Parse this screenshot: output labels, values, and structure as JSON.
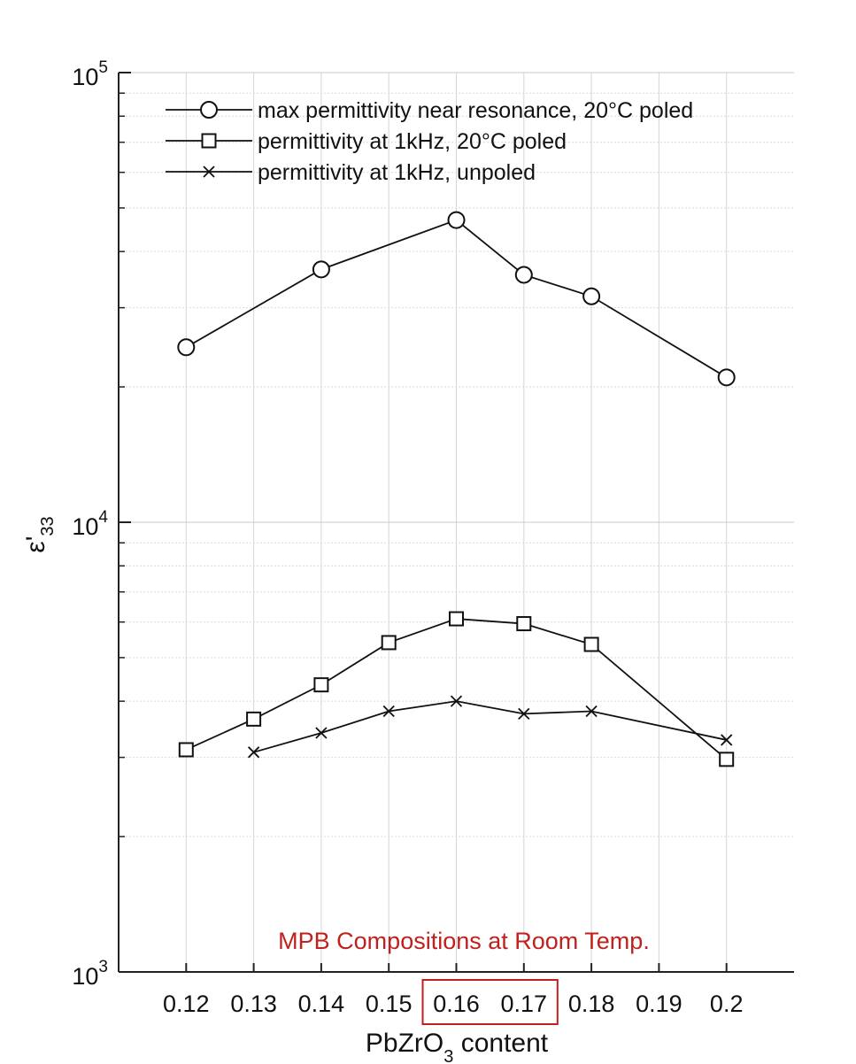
{
  "chart_data": {
    "type": "line",
    "title": "",
    "xlabel": "PbZrO3 content",
    "xlabel_parts": {
      "base": "PbZrO",
      "sub": "3",
      "rest": " content"
    },
    "ylabel": "ε'33",
    "ylabel_parts": {
      "base": "ε'",
      "sub": "33"
    },
    "yscale": "log",
    "ylim": [
      1000,
      100000
    ],
    "xlim": [
      0.11,
      0.21
    ],
    "x_ticks": [
      0.12,
      0.13,
      0.14,
      0.15,
      0.16,
      0.17,
      0.18,
      0.19,
      0.2
    ],
    "x_tick_labels": [
      "0.12",
      "0.13",
      "0.14",
      "0.15",
      "0.16",
      "0.17",
      "0.18",
      "0.19",
      "0.2"
    ],
    "y_ticks": [
      1000,
      10000,
      100000
    ],
    "y_tick_labels": [
      {
        "base": "10",
        "exp": "3"
      },
      {
        "base": "10",
        "exp": "4"
      },
      {
        "base": "10",
        "exp": "5"
      }
    ],
    "grid": true,
    "legend_position": "top-left",
    "series": [
      {
        "name": "max permittivity near resonance, 20°C poled",
        "marker": "circle",
        "x": [
          0.12,
          0.14,
          0.16,
          0.17,
          0.18,
          0.2
        ],
        "values": [
          24500,
          36500,
          47000,
          35500,
          31800,
          21000
        ]
      },
      {
        "name": "permittivity at 1kHz, 20°C poled",
        "marker": "square",
        "x": [
          0.12,
          0.13,
          0.14,
          0.15,
          0.16,
          0.17,
          0.18,
          0.2
        ],
        "values": [
          3120,
          3650,
          4350,
          5400,
          6100,
          5950,
          5350,
          2970
        ]
      },
      {
        "name": "permittivity at 1kHz, unpoled",
        "marker": "x",
        "x": [
          0.13,
          0.14,
          0.15,
          0.16,
          0.17,
          0.18,
          0.2
        ],
        "values": [
          3080,
          3400,
          3800,
          4000,
          3750,
          3800,
          3280
        ]
      }
    ],
    "annotations": {
      "text": "MPB Compositions at Room Temp.",
      "color": "#c0201e",
      "highlighted_ticks": [
        "0.16",
        "0.17"
      ]
    }
  }
}
